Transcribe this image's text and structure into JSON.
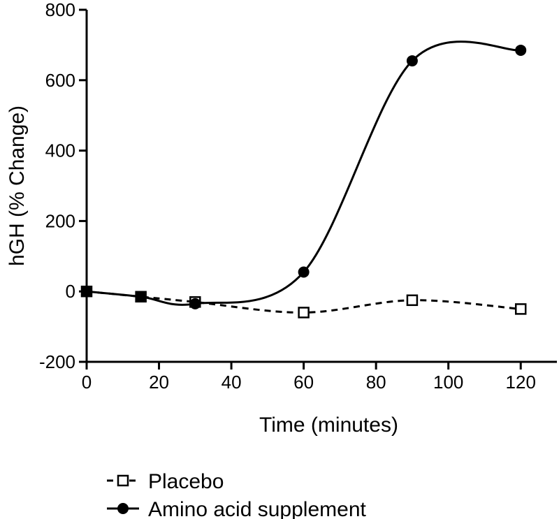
{
  "chart_data": {
    "type": "line",
    "xlabel": "Time (minutes)",
    "ylabel": "hGH (% Change)",
    "xlim": [
      0,
      130
    ],
    "ylim": [
      -200,
      800
    ],
    "xticks": [
      0,
      20,
      40,
      60,
      80,
      100,
      120
    ],
    "yticks": [
      -200,
      0,
      200,
      400,
      600,
      800
    ],
    "grid": false,
    "legend": "bottom",
    "series": [
      {
        "name": "Placebo",
        "marker": "open-square",
        "line_style": "dashed",
        "x": [
          0,
          15,
          30,
          60,
          90,
          120
        ],
        "y": [
          0,
          -15,
          -30,
          -60,
          -25,
          -50
        ]
      },
      {
        "name": "Amino acid supplement",
        "marker": "filled-circle",
        "line_style": "solid",
        "x": [
          0,
          15,
          30,
          60,
          90,
          120
        ],
        "y": [
          0,
          -15,
          -35,
          55,
          655,
          685
        ]
      }
    ]
  }
}
